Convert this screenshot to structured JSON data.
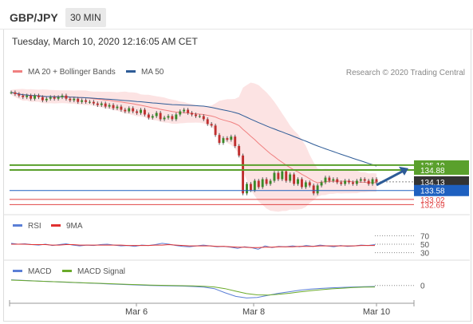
{
  "header": {
    "symbol": "GBP/JPY",
    "timeframe": "30 MIN"
  },
  "timestamp": "Tuesday, March 10, 2020 12:16:05 AM CET",
  "copyright": "Research © 2020 Trading Central",
  "colors": {
    "bollinger": "#f08080",
    "ma50": "#2e5c97",
    "support": "#e04545",
    "resistance": "#5aa02c",
    "pivot": "#1e60c0",
    "price": "#333333",
    "rsi": "#5b7fd6",
    "rsi_ma": "#e03030",
    "macd": "#5b7fd6",
    "macd_signal": "#6aaa2a"
  },
  "chart_data": [
    {
      "type": "candlestick",
      "legend": [
        {
          "name": "MA 20 + Bollinger Bands"
        },
        {
          "name": "MA 50"
        }
      ],
      "x_ticks": [
        "Mar 6",
        "Mar 8",
        "Mar 10"
      ],
      "ylim": [
        132.1,
        140.6
      ],
      "close": [
        139.8,
        139.7,
        139.6,
        139.5,
        139.6,
        139.4,
        139.6,
        139.5,
        139.3,
        139.4,
        139.5,
        139.4,
        139.5,
        139.6,
        139.4,
        139.3,
        139.4,
        139.2,
        139.3,
        139.2,
        139.2,
        139.1,
        139.0,
        139.1,
        138.9,
        139.0,
        138.8,
        138.9,
        138.7,
        138.6,
        138.8,
        138.6,
        138.5,
        138.7,
        138.4,
        138.2,
        138.3,
        138.5,
        138.1,
        138.2,
        138.3,
        138.1,
        138.4,
        138.6,
        138.7,
        138.5,
        138.4,
        138.3,
        138.3,
        138.1,
        137.8,
        137.7,
        137.1,
        136.6,
        136.9,
        136.8,
        137.0,
        136.4,
        135.8,
        133.4,
        134.0,
        133.6,
        134.2,
        133.8,
        134.3,
        134.0,
        134.2,
        134.7,
        134.3,
        134.8,
        134.2,
        134.6,
        134.0,
        134.3,
        133.8,
        134.1,
        133.9,
        133.4,
        133.9,
        134.1,
        134.4,
        134.2,
        134.3,
        134.1,
        134.0,
        134.2,
        134.1,
        134.0,
        134.2,
        134.3,
        134.2,
        134.0,
        134.3,
        134.1
      ],
      "forecast_arrow": {
        "from": 134.13,
        "to": 135.19
      },
      "levels": [
        {
          "label": "135.19",
          "value": 135.19,
          "kind": "resistance"
        },
        {
          "label": "134.88",
          "value": 134.88,
          "kind": "resistance"
        },
        {
          "label": "134.13",
          "value": 134.13,
          "kind": "price"
        },
        {
          "label": "133.58",
          "value": 133.58,
          "kind": "pivot"
        },
        {
          "label": "133.02",
          "value": 133.02,
          "kind": "support"
        },
        {
          "label": "132.69",
          "value": 132.69,
          "kind": "support"
        }
      ]
    },
    {
      "type": "line",
      "legend": [
        {
          "name": "RSI"
        },
        {
          "name": "9MA"
        }
      ],
      "ylim": [
        20,
        80
      ],
      "y_ticks": [
        "70",
        "50",
        "30"
      ],
      "series": [
        {
          "values": [
            52,
            50,
            51,
            49,
            48,
            50,
            47,
            49,
            51,
            48,
            46,
            48,
            47,
            49,
            50,
            48,
            46,
            47,
            45,
            48,
            47,
            49,
            52,
            50,
            47,
            45,
            44,
            46,
            48,
            46,
            44,
            45,
            43,
            40,
            44,
            42,
            38,
            46,
            42,
            45,
            44,
            46,
            44,
            47,
            45,
            48,
            46,
            44,
            47,
            45,
            46,
            48,
            47,
            49
          ]
        },
        {
          "values": [
            50,
            50,
            50,
            49,
            49,
            49,
            48,
            48,
            49,
            49,
            48,
            48,
            48,
            48,
            48,
            48,
            48,
            47,
            47,
            47,
            47,
            48,
            48,
            49,
            48,
            47,
            46,
            46,
            46,
            46,
            45,
            45,
            44,
            43,
            43,
            42,
            42,
            43,
            43,
            44,
            44,
            44,
            45,
            45,
            45,
            46,
            46,
            46,
            46,
            46,
            46,
            47,
            47,
            47
          ]
        }
      ]
    },
    {
      "type": "line",
      "legend": [
        {
          "name": "MACD"
        },
        {
          "name": "MACD Signal"
        }
      ],
      "ylim": [
        -1.4,
        0.9
      ],
      "y_ticks": [
        "0"
      ],
      "series": [
        {
          "values": [
            0.55,
            0.5,
            0.45,
            0.4,
            0.36,
            0.32,
            0.28,
            0.24,
            0.2,
            0.16,
            0.12,
            0.08,
            0.04,
            0.0,
            -0.02,
            -0.04,
            -0.06,
            -0.1,
            -0.16,
            -0.3,
            -0.7,
            -1.05,
            -1.2,
            -1.15,
            -0.95,
            -0.75,
            -0.6,
            -0.45,
            -0.35,
            -0.28,
            -0.22,
            -0.18,
            -0.14,
            -0.12,
            -0.1
          ]
        },
        {
          "values": [
            0.52,
            0.48,
            0.44,
            0.4,
            0.36,
            0.33,
            0.29,
            0.25,
            0.22,
            0.18,
            0.14,
            0.1,
            0.07,
            0.04,
            0.02,
            0.0,
            -0.02,
            -0.04,
            -0.08,
            -0.14,
            -0.3,
            -0.55,
            -0.78,
            -0.9,
            -0.92,
            -0.85,
            -0.75,
            -0.62,
            -0.5,
            -0.4,
            -0.32,
            -0.26,
            -0.2,
            -0.16,
            -0.14
          ]
        }
      ]
    }
  ]
}
